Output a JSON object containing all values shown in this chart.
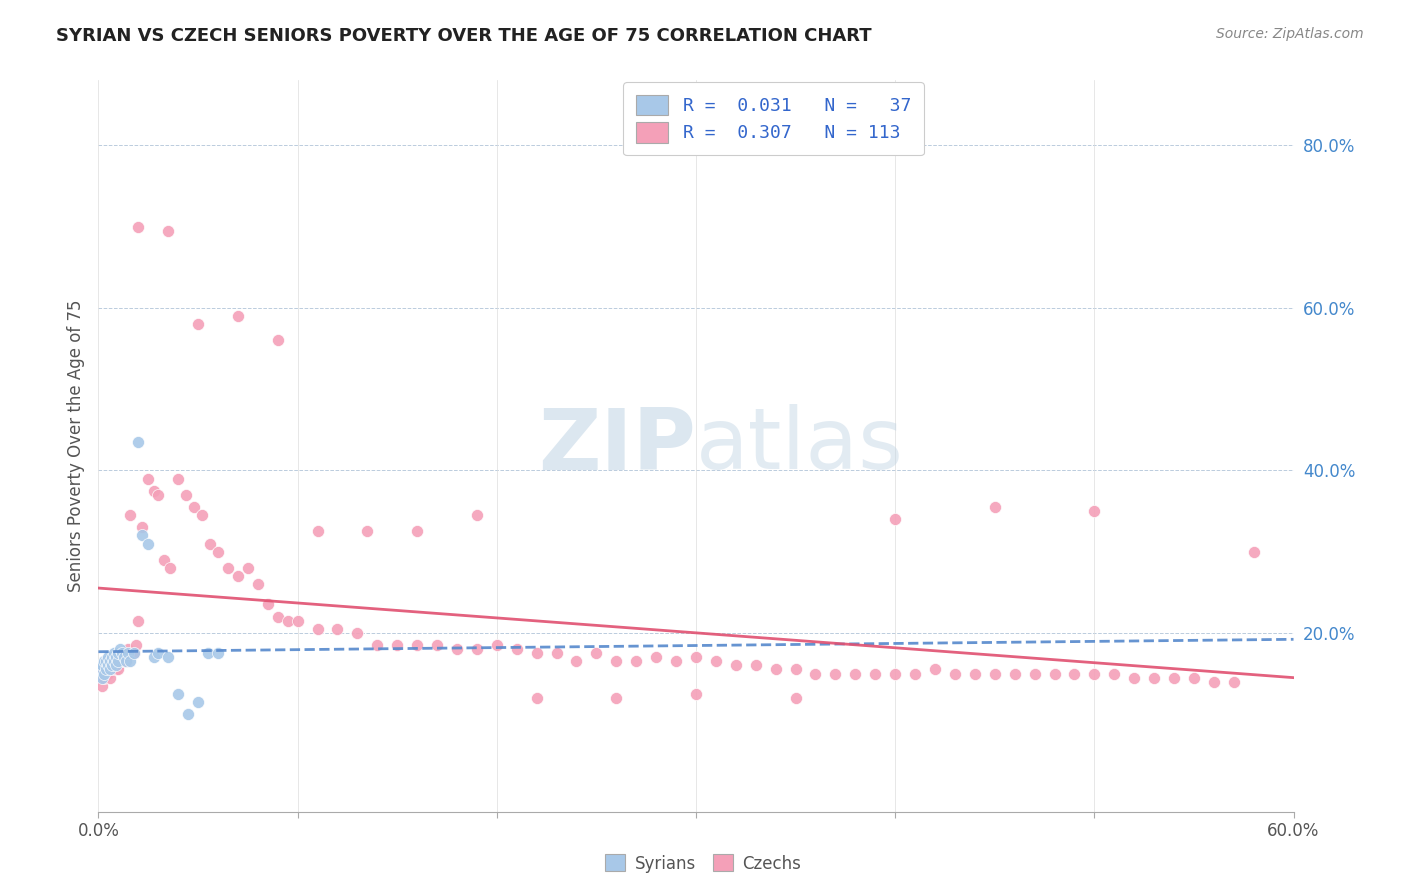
{
  "title": "SYRIAN VS CZECH SENIORS POVERTY OVER THE AGE OF 75 CORRELATION CHART",
  "source": "Source: ZipAtlas.com",
  "ylabel": "Seniors Poverty Over the Age of 75",
  "xlim": [
    0.0,
    0.6
  ],
  "ylim": [
    -0.02,
    0.88
  ],
  "yticks_right": [
    0.2,
    0.4,
    0.6,
    0.8
  ],
  "ytick_labels_right": [
    "20.0%",
    "40.0%",
    "60.0%",
    "80.0%"
  ],
  "syrian_color": "#a8c8e8",
  "czech_color": "#f4a0b8",
  "syrian_line_color": "#5588cc",
  "czech_line_color": "#e05070",
  "watermark_zip": "ZIP",
  "watermark_atlas": "atlas",
  "syrian_x": [
    0.001,
    0.002,
    0.002,
    0.003,
    0.003,
    0.004,
    0.004,
    0.005,
    0.005,
    0.006,
    0.006,
    0.007,
    0.007,
    0.008,
    0.008,
    0.009,
    0.009,
    0.01,
    0.01,
    0.011,
    0.012,
    0.013,
    0.014,
    0.015,
    0.016,
    0.018,
    0.02,
    0.022,
    0.025,
    0.028,
    0.03,
    0.035,
    0.04,
    0.045,
    0.05,
    0.055,
    0.06
  ],
  "syrian_y": [
    0.155,
    0.16,
    0.145,
    0.165,
    0.15,
    0.155,
    0.165,
    0.16,
    0.17,
    0.155,
    0.165,
    0.17,
    0.16,
    0.165,
    0.175,
    0.17,
    0.16,
    0.165,
    0.175,
    0.18,
    0.175,
    0.17,
    0.165,
    0.175,
    0.165,
    0.175,
    0.435,
    0.32,
    0.31,
    0.17,
    0.175,
    0.17,
    0.125,
    0.1,
    0.115,
    0.175,
    0.175
  ],
  "czech_x": [
    0.001,
    0.002,
    0.002,
    0.003,
    0.003,
    0.004,
    0.004,
    0.005,
    0.005,
    0.006,
    0.006,
    0.007,
    0.007,
    0.008,
    0.008,
    0.009,
    0.009,
    0.01,
    0.01,
    0.011,
    0.012,
    0.013,
    0.014,
    0.015,
    0.016,
    0.017,
    0.018,
    0.019,
    0.02,
    0.022,
    0.025,
    0.028,
    0.03,
    0.033,
    0.036,
    0.04,
    0.044,
    0.048,
    0.052,
    0.056,
    0.06,
    0.065,
    0.07,
    0.075,
    0.08,
    0.085,
    0.09,
    0.095,
    0.1,
    0.11,
    0.12,
    0.13,
    0.14,
    0.15,
    0.16,
    0.17,
    0.18,
    0.19,
    0.2,
    0.21,
    0.22,
    0.23,
    0.24,
    0.25,
    0.26,
    0.27,
    0.28,
    0.29,
    0.3,
    0.31,
    0.32,
    0.33,
    0.34,
    0.35,
    0.36,
    0.37,
    0.38,
    0.39,
    0.4,
    0.41,
    0.42,
    0.43,
    0.44,
    0.45,
    0.46,
    0.47,
    0.48,
    0.49,
    0.5,
    0.51,
    0.52,
    0.53,
    0.54,
    0.55,
    0.56,
    0.57,
    0.58,
    0.02,
    0.035,
    0.05,
    0.07,
    0.09,
    0.11,
    0.135,
    0.16,
    0.19,
    0.22,
    0.26,
    0.3,
    0.35,
    0.4,
    0.45,
    0.5
  ],
  "czech_y": [
    0.145,
    0.155,
    0.135,
    0.16,
    0.145,
    0.155,
    0.165,
    0.15,
    0.155,
    0.16,
    0.145,
    0.165,
    0.155,
    0.16,
    0.17,
    0.155,
    0.165,
    0.16,
    0.155,
    0.175,
    0.165,
    0.175,
    0.165,
    0.18,
    0.345,
    0.175,
    0.175,
    0.185,
    0.215,
    0.33,
    0.39,
    0.375,
    0.37,
    0.29,
    0.28,
    0.39,
    0.37,
    0.355,
    0.345,
    0.31,
    0.3,
    0.28,
    0.27,
    0.28,
    0.26,
    0.235,
    0.22,
    0.215,
    0.215,
    0.205,
    0.205,
    0.2,
    0.185,
    0.185,
    0.185,
    0.185,
    0.18,
    0.18,
    0.185,
    0.18,
    0.175,
    0.175,
    0.165,
    0.175,
    0.165,
    0.165,
    0.17,
    0.165,
    0.17,
    0.165,
    0.16,
    0.16,
    0.155,
    0.155,
    0.15,
    0.15,
    0.15,
    0.15,
    0.15,
    0.15,
    0.155,
    0.15,
    0.15,
    0.15,
    0.15,
    0.15,
    0.15,
    0.15,
    0.15,
    0.15,
    0.145,
    0.145,
    0.145,
    0.145,
    0.14,
    0.14,
    0.3,
    0.7,
    0.695,
    0.58,
    0.59,
    0.56,
    0.325,
    0.325,
    0.325,
    0.345,
    0.12,
    0.12,
    0.125,
    0.12,
    0.34,
    0.355,
    0.35
  ]
}
